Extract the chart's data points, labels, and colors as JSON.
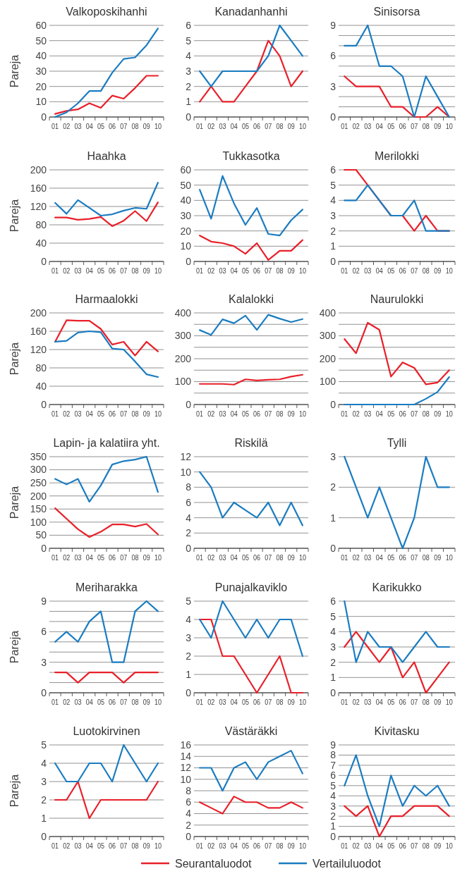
{
  "chart_data": [
    {
      "type": "line",
      "title": "Valkoposkihanhi",
      "ylabel": "Pareja",
      "categories": [
        "01",
        "02",
        "03",
        "04",
        "05",
        "06",
        "07",
        "08",
        "09",
        "10"
      ],
      "ylim": [
        0,
        60
      ],
      "yticks": [
        0,
        10,
        20,
        30,
        40,
        50,
        60
      ],
      "grid": "y",
      "series": [
        {
          "color": "#e8202a",
          "values": [
            2,
            4,
            5,
            9,
            6,
            14,
            12,
            19,
            27,
            27
          ]
        },
        {
          "color": "#1a7cc1",
          "values": [
            0,
            3,
            9,
            17,
            17,
            29,
            38,
            39,
            47,
            58
          ]
        }
      ]
    },
    {
      "type": "line",
      "title": "Kanadanhanhi",
      "categories": [
        "01",
        "02",
        "03",
        "04",
        "05",
        "06",
        "07",
        "08",
        "09",
        "10"
      ],
      "ylim": [
        0,
        6
      ],
      "yticks": [
        0,
        1,
        2,
        3,
        4,
        5,
        6
      ],
      "grid": "y",
      "series": [
        {
          "color": "#e8202a",
          "values": [
            1,
            2,
            1,
            1,
            2,
            3,
            5,
            4,
            2,
            3
          ]
        },
        {
          "color": "#1a7cc1",
          "values": [
            3,
            2,
            3,
            3,
            3,
            3,
            4,
            6,
            5,
            4
          ]
        }
      ]
    },
    {
      "type": "line",
      "title": "Sinisorsa",
      "categories": [
        "01",
        "02",
        "03",
        "04",
        "05",
        "06",
        "07",
        "08",
        "09",
        "10"
      ],
      "ylim": [
        0,
        9
      ],
      "yticks": [
        0,
        {
          "value": 1,
          "label": null
        },
        {
          "value": 2,
          "label": null
        },
        3,
        {
          "value": 4,
          "label": null
        },
        {
          "value": 5,
          "label": null
        },
        6,
        {
          "value": 7,
          "label": null
        },
        {
          "value": 8,
          "label": null
        },
        9
      ],
      "grid": "y",
      "series": [
        {
          "color": "#e8202a",
          "values": [
            4,
            3,
            3,
            3,
            1,
            1,
            0,
            0,
            1,
            0
          ]
        },
        {
          "color": "#1a7cc1",
          "values": [
            7,
            7,
            9,
            5,
            5,
            4,
            0,
            4,
            2,
            0
          ]
        }
      ]
    },
    {
      "type": "line",
      "title": "Haahka",
      "ylabel": "Pareja",
      "categories": [
        "01",
        "02",
        "03",
        "04",
        "05",
        "06",
        "07",
        "08",
        "09",
        "10"
      ],
      "ylim": [
        0,
        200
      ],
      "yticks": [
        0,
        40,
        80,
        120,
        160,
        200
      ],
      "grid": "y",
      "series": [
        {
          "color": "#e8202a",
          "values": [
            96,
            96,
            91,
            93,
            97,
            77,
            89,
            110,
            88,
            129
          ]
        },
        {
          "color": "#1a7cc1",
          "values": [
            128,
            104,
            134,
            117,
            100,
            103,
            111,
            117,
            115,
            172
          ]
        }
      ]
    },
    {
      "type": "line",
      "title": "Tukkasotka",
      "categories": [
        "01",
        "02",
        "03",
        "04",
        "05",
        "06",
        "07",
        "08",
        "09",
        "10"
      ],
      "ylim": [
        0,
        60
      ],
      "yticks": [
        0,
        10,
        20,
        30,
        40,
        50,
        60
      ],
      "grid": "y",
      "series": [
        {
          "color": "#e8202a",
          "values": [
            17,
            13,
            12,
            10,
            5,
            12,
            1,
            7,
            7,
            14
          ]
        },
        {
          "color": "#1a7cc1",
          "values": [
            47,
            28,
            56,
            38,
            24,
            35,
            18,
            17,
            27,
            34
          ]
        }
      ]
    },
    {
      "type": "line",
      "title": "Merilokki",
      "categories": [
        "01",
        "02",
        "03",
        "04",
        "05",
        "06",
        "07",
        "08",
        "09",
        "10"
      ],
      "ylim": [
        0,
        6
      ],
      "yticks": [
        0,
        1,
        2,
        3,
        4,
        5,
        6
      ],
      "grid": "y",
      "series": [
        {
          "color": "#e8202a",
          "values": [
            6,
            6,
            5,
            4,
            3,
            3,
            2,
            3,
            2,
            2
          ]
        },
        {
          "color": "#1a7cc1",
          "values": [
            4,
            4,
            5,
            4,
            3,
            3,
            4,
            2,
            2,
            2
          ]
        }
      ]
    },
    {
      "type": "line",
      "title": "Harmaalokki",
      "ylabel": "Pareja",
      "categories": [
        "01",
        "02",
        "03",
        "04",
        "05",
        "06",
        "07",
        "08",
        "09",
        "10"
      ],
      "ylim": [
        0,
        200
      ],
      "yticks": [
        0,
        40,
        80,
        120,
        160,
        200
      ],
      "grid": "y",
      "series": [
        {
          "color": "#e8202a",
          "values": [
            137,
            184,
            183,
            183,
            165,
            131,
            137,
            107,
            137,
            116
          ]
        },
        {
          "color": "#1a7cc1",
          "values": [
            137,
            139,
            157,
            160,
            158,
            122,
            120,
            94,
            66,
            60
          ]
        }
      ]
    },
    {
      "type": "line",
      "title": "Kalalokki",
      "categories": [
        "01",
        "02",
        "03",
        "04",
        "05",
        "06",
        "07",
        "08",
        "09",
        "10"
      ],
      "ylim": [
        0,
        400
      ],
      "yticks": [
        0,
        {
          "value": 50,
          "label": null
        },
        100,
        {
          "value": 150,
          "label": null
        },
        200,
        {
          "value": 250,
          "label": null
        },
        300,
        {
          "value": 350,
          "label": null
        },
        400
      ],
      "grid": "y",
      "series": [
        {
          "color": "#e8202a",
          "values": [
            90,
            90,
            90,
            87,
            110,
            105,
            108,
            110,
            122,
            130
          ]
        },
        {
          "color": "#1a7cc1",
          "values": [
            325,
            304,
            372,
            355,
            388,
            326,
            392,
            375,
            360,
            373
          ]
        }
      ]
    },
    {
      "type": "line",
      "title": "Naurulokki",
      "categories": [
        "01",
        "02",
        "03",
        "04",
        "05",
        "06",
        "07",
        "08",
        "09",
        "10"
      ],
      "ylim": [
        0,
        400
      ],
      "yticks": [
        0,
        {
          "value": 50,
          "label": null
        },
        100,
        {
          "value": 150,
          "label": null
        },
        200,
        {
          "value": 250,
          "label": null
        },
        300,
        {
          "value": 350,
          "label": null
        },
        400
      ],
      "grid": "y",
      "series": [
        {
          "color": "#e8202a",
          "values": [
            286,
            224,
            357,
            326,
            122,
            184,
            160,
            88,
            96,
            150
          ]
        },
        {
          "color": "#1a7cc1",
          "values": [
            0,
            0,
            0,
            0,
            0,
            0,
            0,
            25,
            55,
            120
          ]
        }
      ]
    },
    {
      "type": "line",
      "title": "Lapin- ja kalatiira yht.",
      "ylabel": "Pareja",
      "categories": [
        "01",
        "02",
        "03",
        "04",
        "05",
        "06",
        "07",
        "08",
        "09",
        "10"
      ],
      "ylim": [
        0,
        350
      ],
      "yticks": [
        0,
        50,
        100,
        150,
        200,
        250,
        300,
        350
      ],
      "grid": "y",
      "series": [
        {
          "color": "#e8202a",
          "values": [
            153,
            113,
            73,
            43,
            63,
            91,
            91,
            83,
            93,
            53
          ]
        },
        {
          "color": "#1a7cc1",
          "values": [
            265,
            244,
            265,
            178,
            240,
            320,
            333,
            339,
            350,
            215
          ]
        }
      ]
    },
    {
      "type": "line",
      "title": "Riskilä",
      "categories": [
        "01",
        "02",
        "03",
        "04",
        "05",
        "06",
        "07",
        "08",
        "09",
        "10"
      ],
      "ylim": [
        0,
        12
      ],
      "yticks": [
        0,
        2,
        4,
        6,
        8,
        10,
        12
      ],
      "grid": "y",
      "series": [
        {
          "color": "#1a7cc1",
          "values": [
            10,
            8,
            4,
            6,
            5,
            4,
            6,
            3,
            6,
            3
          ]
        }
      ]
    },
    {
      "type": "line",
      "title": "Tylli",
      "categories": [
        "01",
        "02",
        "03",
        "04",
        "05",
        "06",
        "07",
        "08",
        "09",
        "10"
      ],
      "ylim": [
        0,
        3
      ],
      "yticks": [
        0,
        1,
        2,
        3
      ],
      "grid": "y",
      "series": [
        {
          "color": "#1a7cc1",
          "values": [
            3,
            2,
            1,
            2,
            1,
            0,
            1,
            3,
            2,
            2
          ]
        }
      ]
    },
    {
      "type": "line",
      "title": "Meriharakka",
      "ylabel": "Pareja",
      "categories": [
        "01",
        "02",
        "03",
        "04",
        "05",
        "06",
        "07",
        "08",
        "09",
        "10"
      ],
      "ylim": [
        0,
        9
      ],
      "yticks": [
        0,
        {
          "value": 1,
          "label": null
        },
        {
          "value": 2,
          "label": null
        },
        3,
        {
          "value": 4,
          "label": null
        },
        {
          "value": 5,
          "label": null
        },
        6,
        {
          "value": 7,
          "label": null
        },
        {
          "value": 8,
          "label": null
        },
        9
      ],
      "grid": "y",
      "series": [
        {
          "color": "#e8202a",
          "values": [
            2,
            2,
            1,
            2,
            2,
            2,
            1,
            2,
            2,
            2
          ]
        },
        {
          "color": "#1a7cc1",
          "values": [
            5,
            6,
            5,
            7,
            8,
            3,
            3,
            8,
            9,
            8
          ]
        }
      ]
    },
    {
      "type": "line",
      "title": "Punajalkaviklo",
      "categories": [
        "01",
        "02",
        "03",
        "04",
        "05",
        "06",
        "07",
        "08",
        "09",
        "10"
      ],
      "ylim": [
        0,
        5
      ],
      "yticks": [
        0,
        1,
        2,
        3,
        4,
        5
      ],
      "grid": "y",
      "series": [
        {
          "color": "#e8202a",
          "values": [
            4,
            4,
            2,
            2,
            1,
            0,
            1,
            2,
            0,
            0
          ]
        },
        {
          "color": "#1a7cc1",
          "values": [
            4,
            3,
            5,
            4,
            3,
            4,
            3,
            4,
            4,
            2
          ]
        }
      ]
    },
    {
      "type": "line",
      "title": "Karikukko",
      "categories": [
        "01",
        "02",
        "03",
        "04",
        "05",
        "06",
        "07",
        "08",
        "09",
        "10"
      ],
      "ylim": [
        0,
        6
      ],
      "yticks": [
        0,
        1,
        2,
        3,
        4,
        5,
        6
      ],
      "grid": "y",
      "series": [
        {
          "color": "#e8202a",
          "values": [
            3,
            4,
            3,
            2,
            3,
            1,
            2,
            0,
            1,
            2
          ]
        },
        {
          "color": "#1a7cc1",
          "values": [
            6,
            2,
            4,
            3,
            3,
            2,
            3,
            4,
            3,
            3
          ]
        }
      ]
    },
    {
      "type": "line",
      "title": "Luotokirvinen",
      "ylabel": "Pareja",
      "categories": [
        "01",
        "02",
        "03",
        "04",
        "05",
        "06",
        "07",
        "08",
        "09",
        "10"
      ],
      "ylim": [
        0,
        5
      ],
      "yticks": [
        0,
        1,
        2,
        3,
        4,
        5
      ],
      "grid": "y",
      "series": [
        {
          "color": "#e8202a",
          "values": [
            2,
            2,
            3,
            1,
            2,
            2,
            2,
            2,
            2,
            3
          ]
        },
        {
          "color": "#1a7cc1",
          "values": [
            4,
            3,
            3,
            4,
            4,
            3,
            5,
            4,
            3,
            4
          ]
        }
      ]
    },
    {
      "type": "line",
      "title": "Västäräkki",
      "categories": [
        "01",
        "02",
        "03",
        "04",
        "05",
        "06",
        "07",
        "08",
        "09",
        "10"
      ],
      "ylim": [
        0,
        16
      ],
      "yticks": [
        0,
        2,
        4,
        6,
        8,
        10,
        12,
        14,
        16
      ],
      "grid": "y",
      "legend": "bottom",
      "series": [
        {
          "name": "Seurantaluodot",
          "color": "#e8202a",
          "values": [
            6,
            5,
            4,
            7,
            6,
            6,
            5,
            5,
            6,
            5
          ]
        },
        {
          "name": "Vertailuluodot",
          "color": "#1a7cc1",
          "values": [
            12,
            12,
            8,
            12,
            13,
            10,
            13,
            14,
            15,
            11
          ]
        }
      ]
    },
    {
      "type": "line",
      "title": "Kivitasku",
      "categories": [
        "01",
        "02",
        "03",
        "04",
        "05",
        "06",
        "07",
        "08",
        "09",
        "10"
      ],
      "ylim": [
        0,
        9
      ],
      "yticks": [
        0,
        1,
        2,
        3,
        4,
        5,
        6,
        7,
        8,
        9
      ],
      "grid": "y",
      "series": [
        {
          "color": "#e8202a",
          "values": [
            3,
            2,
            3,
            0,
            2,
            2,
            3,
            3,
            3,
            2
          ]
        },
        {
          "color": "#1a7cc1",
          "values": [
            5,
            8,
            4,
            1,
            6,
            3,
            5,
            4,
            5,
            3
          ]
        }
      ]
    }
  ]
}
